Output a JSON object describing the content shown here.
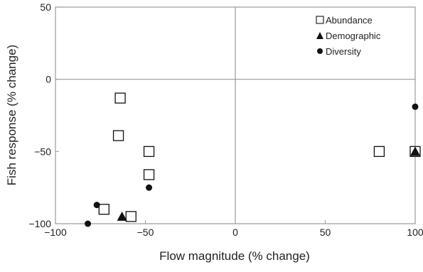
{
  "chart_data": {
    "type": "scatter",
    "title": "",
    "xlabel": "Flow magnitude (% change)",
    "ylabel": "Fish response (% change)",
    "xlim": [
      -100,
      100
    ],
    "ylim": [
      -100,
      50
    ],
    "xticks": [
      -100,
      -50,
      0,
      50,
      100
    ],
    "yticks": [
      -100,
      -50,
      0,
      50
    ],
    "xtick_labels": [
      "−100",
      "−50",
      "0",
      "50",
      "100"
    ],
    "ytick_labels": [
      "−100",
      "−50",
      "0",
      "50"
    ],
    "reference_lines": {
      "x": 0,
      "y": 0
    },
    "grid": false,
    "legend_position": "top-right",
    "series": [
      {
        "name": "Abundance",
        "marker": "open-square",
        "points": [
          {
            "x": -64,
            "y": -13
          },
          {
            "x": -65,
            "y": -39
          },
          {
            "x": -48,
            "y": -50
          },
          {
            "x": -48,
            "y": -66
          },
          {
            "x": -73,
            "y": -90
          },
          {
            "x": -58,
            "y": -95
          },
          {
            "x": 80,
            "y": -50
          },
          {
            "x": 100,
            "y": -50
          }
        ]
      },
      {
        "name": "Demographic",
        "marker": "filled-triangle",
        "points": [
          {
            "x": -63,
            "y": -95
          },
          {
            "x": 100,
            "y": -50
          }
        ]
      },
      {
        "name": "Diversity",
        "marker": "filled-circle",
        "points": [
          {
            "x": -82,
            "y": -100
          },
          {
            "x": -77,
            "y": -87
          },
          {
            "x": -48,
            "y": -75
          },
          {
            "x": 100,
            "y": -19
          }
        ]
      }
    ],
    "colors": {
      "marker_stroke": "#111111",
      "marker_fill": "#111111",
      "axis": "#9a9a9a"
    }
  }
}
